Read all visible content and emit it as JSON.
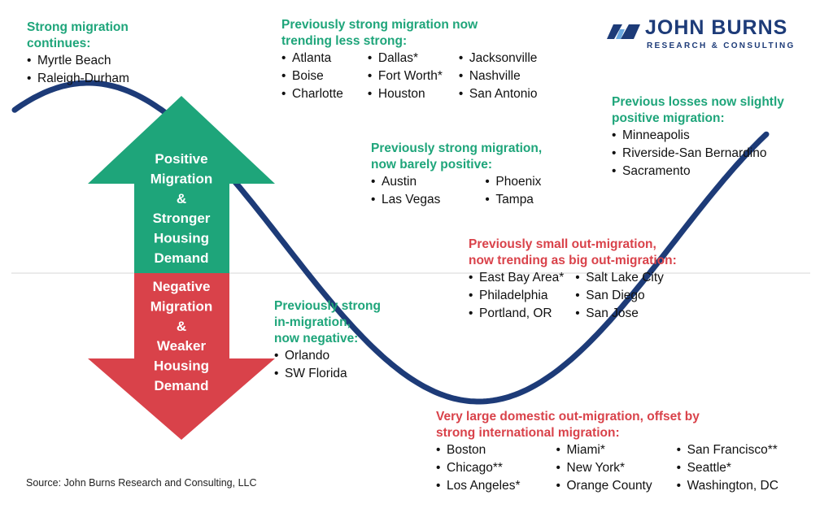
{
  "logo": {
    "name": "JOHN BURNS",
    "tagline": "RESEARCH & CONSULTING"
  },
  "arrow_up": {
    "lines": [
      "Positive",
      "Migration",
      "&",
      "Stronger",
      "Housing",
      "Demand"
    ],
    "color": "#1ea57a"
  },
  "arrow_down": {
    "lines": [
      "Negative",
      "Migration",
      "&",
      "Weaker",
      "Housing",
      "Demand"
    ],
    "color": "#d9424a"
  },
  "curve_color": "#1d3b78",
  "groups": [
    {
      "id": "strong-continues",
      "tone": "green",
      "heading": [
        "Strong migration",
        "continues:"
      ],
      "columns": [
        [
          "Myrtle Beach",
          "Raleigh-Durham"
        ]
      ]
    },
    {
      "id": "less-strong",
      "tone": "green",
      "heading": [
        "Previously strong migration now",
        "trending less strong:"
      ],
      "columns": [
        [
          "Atlanta",
          "Boise",
          "Charlotte"
        ],
        [
          "Dallas*",
          "Fort Worth*",
          "Houston"
        ],
        [
          "Jacksonville",
          "Nashville",
          "San Antonio"
        ]
      ]
    },
    {
      "id": "slightly-positive",
      "tone": "green",
      "heading": [
        "Previous losses now slightly",
        "positive migration:"
      ],
      "columns": [
        [
          "Minneapolis",
          "Riverside-San Bernardino",
          "Sacramento"
        ]
      ]
    },
    {
      "id": "barely-positive",
      "tone": "green",
      "heading": [
        "Previously strong migration,",
        "now barely positive:"
      ],
      "columns": [
        [
          "Austin",
          "Las Vegas"
        ],
        [
          "Phoenix",
          "Tampa"
        ]
      ]
    },
    {
      "id": "big-out",
      "tone": "red",
      "heading": [
        "Previously small out-migration,",
        "now trending as big out-migration:"
      ],
      "columns": [
        [
          "East Bay Area*",
          "Philadelphia",
          "Portland, OR"
        ],
        [
          "Salt Lake City",
          "San Diego",
          "San Jose"
        ]
      ]
    },
    {
      "id": "now-negative",
      "tone": "green",
      "heading": [
        "Previously strong",
        "in-migration,",
        "now negative:"
      ],
      "columns": [
        [
          "Orlando",
          "SW Florida"
        ]
      ]
    },
    {
      "id": "international-offset",
      "tone": "red",
      "heading": [
        "Very large domestic out-migration, offset by",
        "strong international migration:"
      ],
      "columns": [
        [
          "Boston",
          "Chicago**",
          "Los Angeles*"
        ],
        [
          "Miami*",
          "New York*",
          "Orange County"
        ],
        [
          "San Francisco**",
          "Seattle*",
          "Washington, DC"
        ]
      ]
    }
  ],
  "source": "Source: John Burns Research and Consulting, LLC"
}
